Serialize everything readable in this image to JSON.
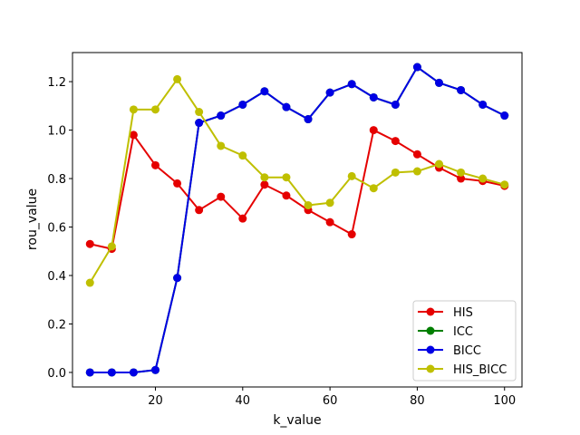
{
  "chart_data": {
    "type": "line",
    "title": "",
    "xlabel": "k_value",
    "ylabel": "rou_value",
    "xlim": [
      1,
      104
    ],
    "ylim": [
      -0.06,
      1.32
    ],
    "xticks": [
      20,
      40,
      60,
      80,
      100
    ],
    "xtick_labels": [
      "20",
      "40",
      "60",
      "80",
      "100"
    ],
    "yticks": [
      0.0,
      0.2,
      0.4,
      0.6,
      0.8,
      1.0,
      1.2
    ],
    "ytick_labels": [
      "0.0",
      "0.2",
      "0.4",
      "0.6",
      "0.8",
      "1.0",
      "1.2"
    ],
    "grid": false,
    "legend_position": "lower-right",
    "x": [
      5,
      10,
      15,
      20,
      25,
      30,
      35,
      40,
      45,
      50,
      55,
      60,
      65,
      70,
      75,
      80,
      85,
      90,
      95,
      100
    ],
    "series": [
      {
        "name": "HIS",
        "color": "#e50000",
        "values": [
          0.53,
          0.51,
          0.98,
          0.855,
          0.78,
          0.67,
          0.725,
          0.635,
          0.775,
          0.73,
          0.67,
          0.62,
          0.57,
          1.0,
          0.955,
          0.9,
          0.845,
          0.8,
          0.79,
          0.77
        ]
      },
      {
        "name": "ICC",
        "color": "#007f00",
        "values": [
          0.0,
          0.0,
          0.0,
          0.01,
          0.39,
          1.03,
          1.06,
          1.105,
          1.16,
          1.095,
          1.045,
          1.155,
          1.19,
          1.135,
          1.105,
          1.26,
          1.195,
          1.165,
          1.105,
          1.06
        ]
      },
      {
        "name": "BICC",
        "color": "#0000e5",
        "values": [
          0.0,
          0.0,
          0.0,
          0.01,
          0.39,
          1.03,
          1.06,
          1.105,
          1.16,
          1.095,
          1.045,
          1.155,
          1.19,
          1.135,
          1.105,
          1.26,
          1.195,
          1.165,
          1.105,
          1.06
        ]
      },
      {
        "name": "HIS_BICC",
        "color": "#bfbf00",
        "values": [
          0.37,
          0.52,
          1.085,
          1.085,
          1.21,
          1.075,
          0.935,
          0.895,
          0.805,
          0.805,
          0.69,
          0.7,
          0.81,
          0.76,
          0.825,
          0.83,
          0.86,
          0.825,
          0.8,
          0.775
        ]
      }
    ]
  }
}
